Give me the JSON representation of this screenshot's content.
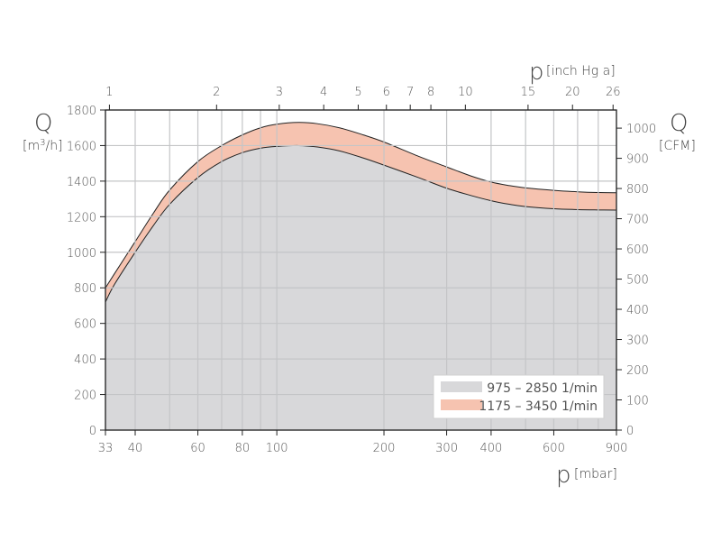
{
  "chart_data": {
    "type": "area",
    "x_scale": "log",
    "xlim": [
      33,
      900
    ],
    "ylim": [
      0,
      1800
    ],
    "y2lim": [
      0,
      1060
    ],
    "grid": true,
    "legend_position": "bottom-right",
    "x_label_symbol": "p",
    "x_label_unit": "[mbar]",
    "x2_label_symbol": "p",
    "x2_label_unit": "[inch Hg a]",
    "y_label_symbol": "Q",
    "y_label_unit_pre": "[m",
    "y_label_unit_sup": "3",
    "y_label_unit_post": "/h]",
    "y2_label_symbol": "Q",
    "y2_label_unit": "[CFM]",
    "x_ticks": [
      33,
      40,
      60,
      80,
      100,
      200,
      300,
      400,
      600,
      900
    ],
    "x_tick_labels": [
      "33",
      "40",
      "60",
      "80",
      "100",
      "200",
      "300",
      "400",
      "600",
      "900"
    ],
    "x_minor_grid": [
      50,
      70,
      90,
      500,
      700,
      800
    ],
    "x2_ticks_mbar": [
      33.86,
      67.73,
      101.59,
      135.45,
      169.32,
      203.18,
      237.05,
      270.91,
      338.64,
      507.96,
      677.28,
      880.46
    ],
    "x2_tick_labels": [
      "1",
      "2",
      "3",
      "4",
      "5",
      "6",
      "7",
      "8",
      "10",
      "15",
      "20",
      "26"
    ],
    "y_ticks": [
      0,
      200,
      400,
      600,
      800,
      1000,
      1200,
      1400,
      1600,
      1800
    ],
    "y_tick_labels": [
      "0",
      "200",
      "400",
      "600",
      "800",
      "1000",
      "1200",
      "1400",
      "1600",
      "1800"
    ],
    "y2_ticks": [
      0,
      100,
      200,
      300,
      400,
      500,
      600,
      700,
      800,
      900,
      1000
    ],
    "y2_tick_labels": [
      "0",
      "100",
      "200",
      "300",
      "400",
      "500",
      "600",
      "700",
      "800",
      "900",
      "1000"
    ],
    "x": [
      33,
      35,
      40,
      45,
      50,
      60,
      70,
      80,
      90,
      100,
      115,
      130,
      150,
      175,
      200,
      250,
      300,
      350,
      400,
      450,
      500,
      600,
      700,
      800,
      900
    ],
    "series": [
      {
        "name": "975 – 2850  1/min",
        "color": "#d8d8da",
        "values": [
          720,
          820,
          1000,
          1150,
          1270,
          1420,
          1510,
          1560,
          1585,
          1595,
          1600,
          1592,
          1570,
          1530,
          1490,
          1420,
          1360,
          1320,
          1290,
          1270,
          1257,
          1245,
          1240,
          1238,
          1237
        ]
      },
      {
        "name": "1175 – 3450  1/min",
        "color": "#f6c3b0",
        "values": [
          800,
          880,
          1060,
          1220,
          1350,
          1510,
          1600,
          1660,
          1700,
          1720,
          1730,
          1723,
          1700,
          1660,
          1620,
          1540,
          1480,
          1430,
          1395,
          1375,
          1362,
          1348,
          1340,
          1336,
          1335
        ]
      }
    ]
  }
}
